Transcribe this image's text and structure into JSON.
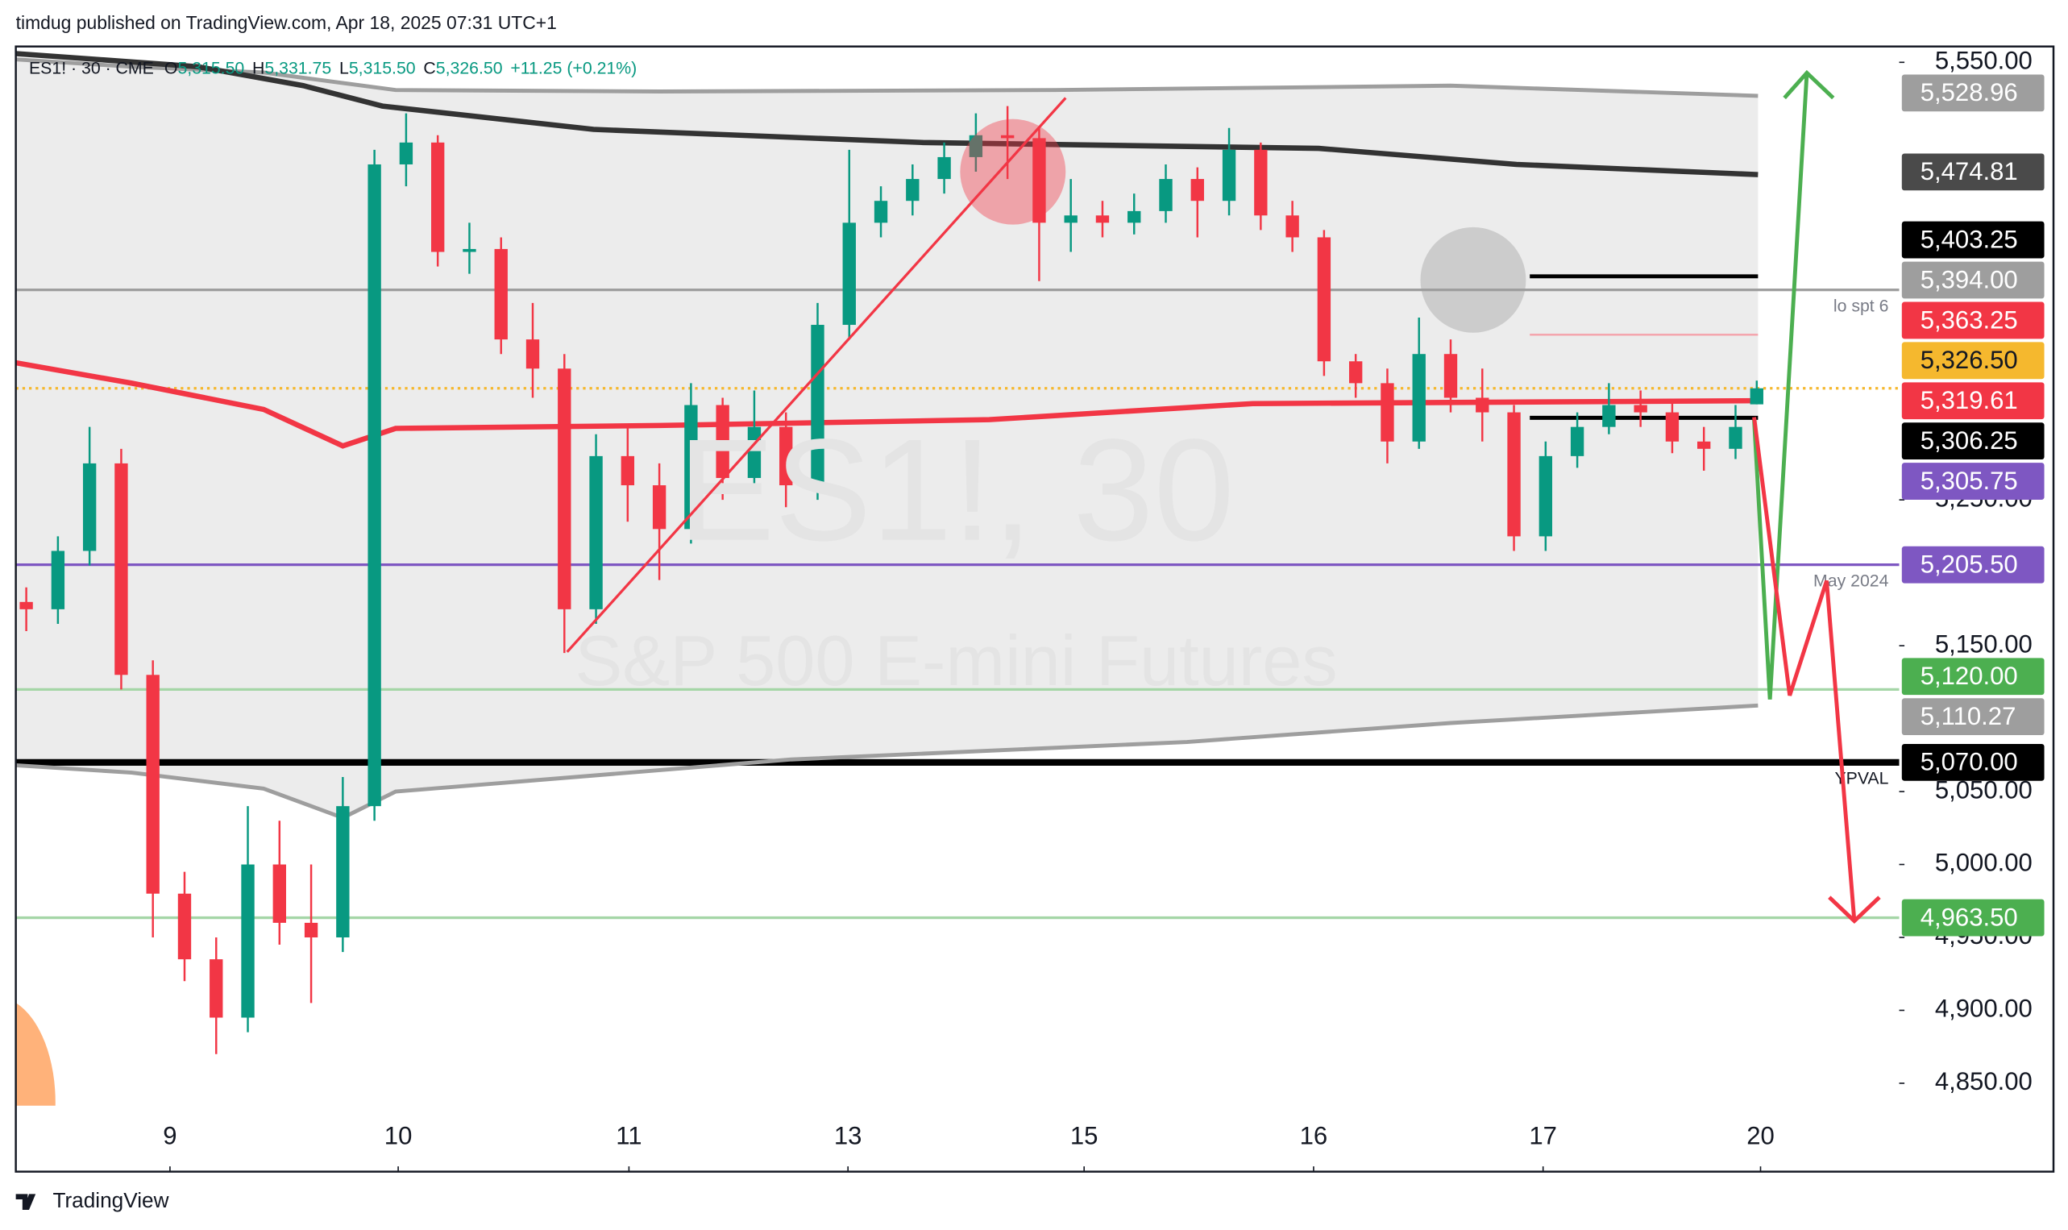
{
  "header": {
    "title": "timdug published on TradingView.com, Apr 18, 2025 07:31 UTC+1",
    "brand": "TradingView"
  },
  "legend": {
    "symbol": "ES1! · 30 · CME",
    "fields": [
      {
        "label": "O",
        "value": "5,315.50"
      },
      {
        "label": "H",
        "value": "5,331.75"
      },
      {
        "label": "L",
        "value": "5,315.50"
      },
      {
        "label": "C",
        "value": "5,326.50"
      }
    ],
    "change": "+11.25 (+0.21%)"
  },
  "watermark": {
    "symbol": "ES1!, 30",
    "description": "S&P 500 E-mini Futures"
  },
  "chart_data": {
    "type": "candlestick",
    "up_color": "#089981",
    "down_color": "#f23645",
    "x": [
      0,
      1,
      2,
      3,
      4,
      5,
      6,
      7,
      8,
      9,
      10,
      11,
      12,
      13,
      14,
      15,
      16,
      17,
      18,
      19,
      20,
      21,
      22,
      23,
      24,
      25,
      26,
      27,
      28,
      29,
      30,
      31,
      32,
      33,
      34,
      35,
      36,
      37,
      38,
      39,
      40,
      41,
      42,
      43,
      44,
      45,
      46,
      47,
      48,
      49,
      50,
      51,
      52,
      53,
      54,
      54.67
    ],
    "open": [
      5180,
      5175,
      5215,
      5275,
      5130,
      4980,
      4935,
      4895,
      5000,
      4960,
      4950,
      5040,
      5480,
      5495,
      5420,
      5422,
      5360,
      5340,
      5175,
      5280,
      5260,
      5230,
      5315,
      5265,
      5300,
      5260,
      5370,
      5440,
      5455,
      5470,
      5485,
      5500,
      5498,
      5440,
      5445,
      5440,
      5448,
      5470,
      5455,
      5490,
      5445,
      5430,
      5345,
      5330,
      5290,
      5350,
      5320,
      5310,
      5225,
      5280,
      5300,
      5315,
      5310,
      5290,
      5285,
      5315.5
    ],
    "high": [
      5190,
      5225,
      5300,
      5285,
      5140,
      4995,
      4950,
      5040,
      5030,
      5000,
      5060,
      5490,
      5515,
      5500,
      5440,
      5430,
      5385,
      5350,
      5295,
      5300,
      5275,
      5330,
      5320,
      5325,
      5310,
      5385,
      5490,
      5465,
      5480,
      5495,
      5515,
      5520,
      5505,
      5470,
      5455,
      5460,
      5480,
      5478,
      5505,
      5495,
      5455,
      5435,
      5350,
      5340,
      5375,
      5360,
      5340,
      5315,
      5290,
      5310,
      5330,
      5325,
      5318,
      5300,
      5315,
      5331.75
    ],
    "low": [
      5160,
      5165,
      5205,
      5120,
      4950,
      4920,
      4870,
      4885,
      4945,
      4905,
      4940,
      5030,
      5465,
      5410,
      5405,
      5350,
      5320,
      5145,
      5165,
      5235,
      5195,
      5220,
      5250,
      5255,
      5245,
      5250,
      5360,
      5430,
      5445,
      5460,
      5475,
      5470,
      5400,
      5420,
      5430,
      5432,
      5440,
      5430,
      5445,
      5435,
      5420,
      5335,
      5320,
      5275,
      5285,
      5310,
      5290,
      5215,
      5215,
      5272,
      5295,
      5300,
      5282,
      5270,
      5278,
      5315.5
    ],
    "close": [
      5175,
      5215,
      5275,
      5130,
      4980,
      4935,
      4895,
      5000,
      4960,
      4950,
      5040,
      5480,
      5495,
      5420,
      5422,
      5360,
      5340,
      5175,
      5280,
      5260,
      5230,
      5315,
      5265,
      5300,
      5260,
      5370,
      5440,
      5455,
      5470,
      5485,
      5500,
      5498,
      5440,
      5445,
      5440,
      5448,
      5470,
      5455,
      5490,
      5445,
      5430,
      5345,
      5330,
      5290,
      5350,
      5320,
      5310,
      5225,
      5280,
      5300,
      5315,
      5310,
      5290,
      5285,
      5300,
      5326.5
    ],
    "xlim": [
      -0.33,
      59.17
    ],
    "xticks": [
      {
        "value": 4.54,
        "label": "9"
      },
      {
        "value": 11.75,
        "label": "10"
      },
      {
        "value": 19.04,
        "label": "11"
      },
      {
        "value": 25.96,
        "label": "13"
      },
      {
        "value": 33.42,
        "label": "15"
      },
      {
        "value": 40.67,
        "label": "16"
      },
      {
        "value": 47.92,
        "label": "17"
      },
      {
        "value": 54.79,
        "label": "20"
      }
    ],
    "ylim": [
      4789.4,
      5560.85
    ],
    "yticks": [
      {
        "value": 4850,
        "label": "4,850.00"
      },
      {
        "value": 4900,
        "label": "4,900.00"
      },
      {
        "value": 4950,
        "label": "4,950.00"
      },
      {
        "value": 5000,
        "label": "5,000.00"
      },
      {
        "value": 5050,
        "label": "5,050.00"
      },
      {
        "value": 5150,
        "label": "5,150.00"
      },
      {
        "value": 5250,
        "label": "5,250.00"
      },
      {
        "value": 5550,
        "label": "5,550.00"
      }
    ],
    "band_fill": "#ececec",
    "lines": [
      {
        "color": "#9e9e9e",
        "width": 3,
        "x": [
          -0.33,
          3.33,
          7.5,
          11.67,
          20,
          32.5,
          45,
          54.71
        ],
        "values": [
          5552,
          5547,
          5543,
          5531,
          5530,
          5531,
          5534,
          5527
        ]
      },
      {
        "color": "#333333",
        "width": 4,
        "x": [
          -0.33,
          5.42,
          8.75,
          11.25,
          17.92,
          28.33,
          40.83,
          47.08,
          54.71
        ],
        "values": [
          5556,
          5547,
          5534,
          5520,
          5504,
          5495,
          5491,
          5480,
          5473
        ]
      },
      {
        "color": "#f23645",
        "width": 4,
        "x": [
          -0.33,
          3.33,
          7.5,
          10,
          11.67,
          20,
          30.42,
          38.75,
          54.71
        ],
        "values": [
          5344,
          5330,
          5312,
          5287,
          5299,
          5301,
          5305,
          5316,
          5318
        ]
      },
      {
        "color": "#9e9e9e",
        "width": 3,
        "x": [
          -0.33,
          3.33,
          7.5,
          10,
          11.67,
          24.17,
          36.67,
          45,
          54.71
        ],
        "values": [
          5068,
          5063,
          5052,
          5032,
          5050,
          5072,
          5084,
          5097,
          5109
        ]
      }
    ],
    "levels": [
      {
        "value": 5394,
        "color": "#9e9e9e",
        "width": 2,
        "text": "lo spt 6"
      },
      {
        "value": 5205.5,
        "color": "#7e57c2",
        "width": 2,
        "text": "May 2024"
      },
      {
        "value": 5120,
        "color": "#a5d6a7",
        "width": 2
      },
      {
        "value": 4963.5,
        "color": "#a5d6a7",
        "width": 2
      },
      {
        "value": 5070,
        "color": "#000000",
        "width": 5,
        "text": "YPVAL"
      },
      {
        "value": 5326.5,
        "color": "#f5b82e",
        "width": 2,
        "dotted": true
      },
      {
        "value": 5403.25,
        "color": "#000000",
        "width": 3,
        "from": 47.5,
        "to": 54.71
      },
      {
        "value": 5306.25,
        "color": "#000000",
        "width": 3,
        "from": 47.5,
        "to": 54.71
      },
      {
        "value": 5363.25,
        "color": "#f4a6ae",
        "width": 1.5,
        "from": 47.5,
        "to": 54.71
      }
    ],
    "price_labels": [
      {
        "value": 5528.96,
        "label": "5,528.96",
        "color": "#9e9e9e"
      },
      {
        "value": 5474.81,
        "label": "5,474.81",
        "color": "#4a4a4a"
      },
      {
        "value": 5403.25,
        "label": "5,403.25",
        "color": "#000000"
      },
      {
        "value": 5394,
        "label": "5,394.00",
        "color": "#9e9e9e"
      },
      {
        "value": 5363.25,
        "label": "5,363.25",
        "color": "#f23645"
      },
      {
        "value": 5326.5,
        "label": "5,326.50",
        "color": "#f5b82e"
      },
      {
        "value": 5319.61,
        "label": "5,319.61",
        "color": "#f23645"
      },
      {
        "value": 5306.25,
        "label": "5,306.25",
        "color": "#000000"
      },
      {
        "value": 5305.75,
        "label": "5,305.75",
        "color": "#7e57c2"
      },
      {
        "value": 5205.5,
        "label": "5,205.50",
        "color": "#7e57c2"
      },
      {
        "value": 5120,
        "label": "5,120.00",
        "color": "#4caf50"
      },
      {
        "value": 5110.27,
        "label": "5,110.27",
        "color": "#9e9e9e"
      },
      {
        "value": 5070,
        "label": "5,070.00",
        "color": "#000000"
      },
      {
        "value": 4963.5,
        "label": "4,963.50",
        "color": "#4caf50"
      }
    ]
  }
}
